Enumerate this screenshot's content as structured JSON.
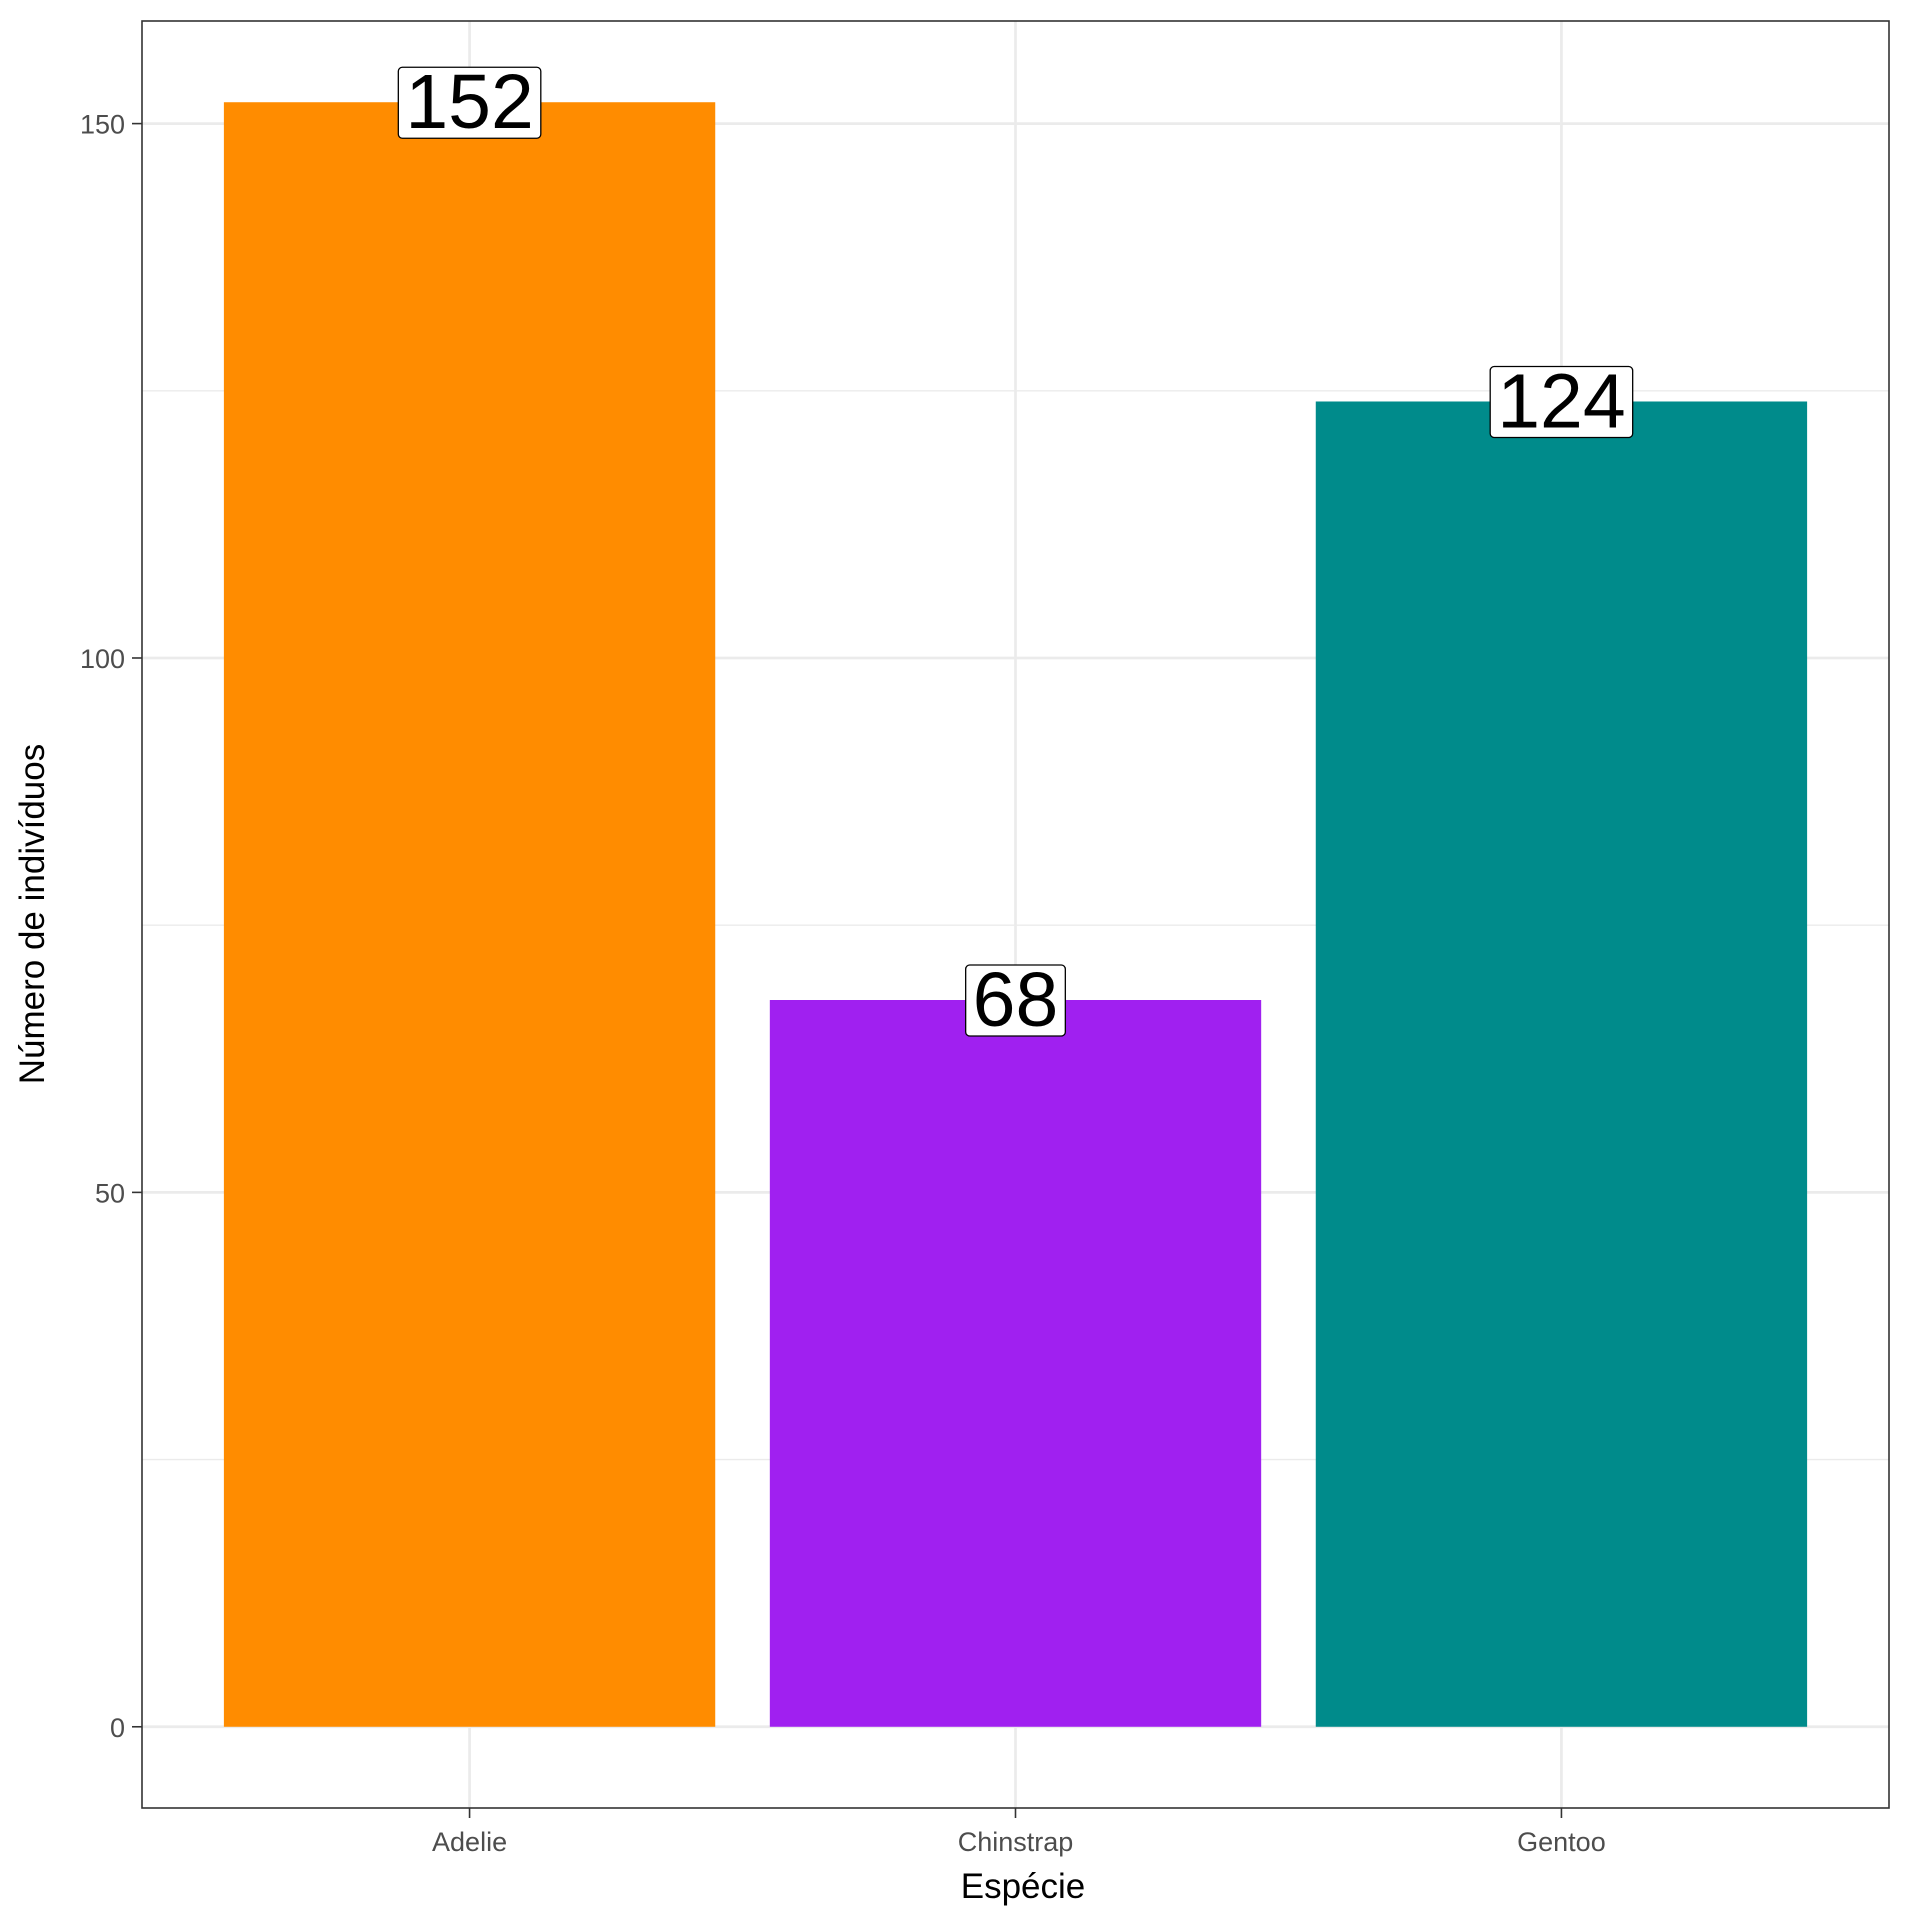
{
  "chart_data": {
    "type": "bar",
    "categories": [
      "Adelie",
      "Chinstrap",
      "Gentoo"
    ],
    "values": [
      152,
      68,
      124
    ],
    "colors": [
      "#FF8C00",
      "#A020F0",
      "#008B8B"
    ],
    "data_labels": [
      "152",
      "68",
      "124"
    ],
    "xlabel": "Espécie",
    "ylabel": "Número de indivíduos",
    "yticks": [
      0,
      50,
      100,
      150
    ],
    "ylim": [
      -7.6,
      159.6
    ],
    "grid": true,
    "theme": "bw"
  }
}
